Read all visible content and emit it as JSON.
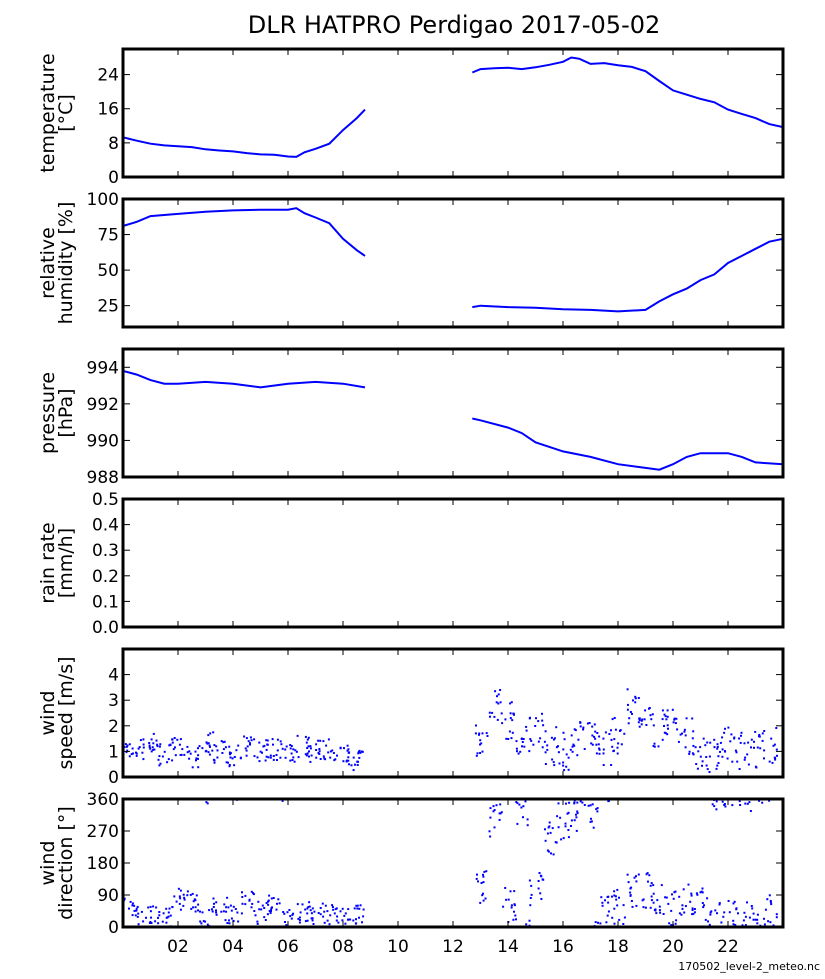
{
  "title": "DLR HATPRO  Perdigao  2017-05-02",
  "footer": "170502_level-2_meteo.nc",
  "line_color": "#0000ff",
  "chart_data": [
    {
      "type": "line",
      "ylabel": [
        "temperature",
        "[°C]"
      ],
      "ylim": [
        0,
        30
      ],
      "yticks": [
        0,
        8,
        16,
        24
      ],
      "ytick_labels": [
        "0",
        "8",
        "16",
        "24"
      ],
      "segments": [
        {
          "x": [
            0,
            0.5,
            1,
            1.5,
            2,
            2.5,
            3,
            3.5,
            4,
            4.5,
            5,
            5.5,
            6,
            6.3,
            6.6,
            7,
            7.5,
            8,
            8.5,
            8.8
          ],
          "y": [
            9.3,
            8.5,
            7.8,
            7.4,
            7.2,
            7.0,
            6.5,
            6.2,
            6.0,
            5.6,
            5.3,
            5.2,
            4.8,
            4.7,
            5.8,
            6.6,
            7.8,
            11,
            13.8,
            15.8
          ]
        },
        {
          "x": [
            12.7,
            13,
            13.5,
            14,
            14.5,
            15,
            15.5,
            16,
            16.3,
            16.6,
            17,
            17.5,
            18,
            18.5,
            19,
            19.5,
            20,
            20.5,
            21,
            21.5,
            22,
            22.5,
            23,
            23.5,
            24
          ],
          "y": [
            24.5,
            25.3,
            25.5,
            25.6,
            25.3,
            25.7,
            26.3,
            27,
            28,
            27.7,
            26.5,
            26.7,
            26.2,
            25.8,
            24.8,
            22.5,
            20.3,
            19.3,
            18.3,
            17.5,
            15.8,
            14.8,
            13.8,
            12.4,
            11.7
          ]
        }
      ]
    },
    {
      "type": "line",
      "ylabel": [
        "relative",
        "humidity [%]"
      ],
      "ylim": [
        10,
        100
      ],
      "yticks": [
        25,
        50,
        75,
        100
      ],
      "ytick_labels": [
        "25",
        "50",
        "75",
        "100"
      ],
      "segments": [
        {
          "x": [
            0,
            0.5,
            1,
            2,
            3,
            4,
            5,
            6,
            6.3,
            6.6,
            7,
            7.5,
            8,
            8.5,
            8.8
          ],
          "y": [
            81,
            84,
            88,
            89.5,
            91,
            92,
            92.5,
            92.5,
            93.5,
            90,
            87,
            83,
            72,
            64,
            60
          ]
        },
        {
          "x": [
            12.7,
            13,
            14,
            15,
            16,
            17,
            18,
            19,
            19.5,
            20,
            20.5,
            21,
            21.5,
            22,
            22.5,
            23,
            23.5,
            24
          ],
          "y": [
            24,
            25,
            24,
            23.5,
            22.5,
            22,
            21,
            22,
            28,
            33,
            37,
            43,
            47,
            55,
            60,
            65,
            70,
            72
          ]
        }
      ]
    },
    {
      "type": "line",
      "ylabel": [
        "pressure",
        "[hPa]"
      ],
      "ylim": [
        988,
        995
      ],
      "yticks": [
        988,
        990,
        992,
        994
      ],
      "ytick_labels": [
        "988",
        "990",
        "992",
        "994"
      ],
      "segments": [
        {
          "x": [
            0,
            0.5,
            1,
            1.5,
            2,
            3,
            4,
            5,
            6,
            7,
            8,
            8.8
          ],
          "y": [
            993.8,
            993.6,
            993.3,
            993.1,
            993.1,
            993.2,
            993.1,
            992.9,
            993.1,
            993.2,
            993.1,
            992.9
          ]
        },
        {
          "x": [
            12.7,
            13,
            14,
            14.5,
            15,
            16,
            17,
            18,
            19,
            19.5,
            20,
            20.5,
            21,
            22,
            22.5,
            23,
            24
          ],
          "y": [
            991.2,
            991.1,
            990.7,
            990.4,
            989.9,
            989.4,
            989.1,
            988.7,
            988.5,
            988.4,
            988.7,
            989.1,
            989.3,
            989.3,
            989.1,
            988.8,
            988.7
          ]
        }
      ]
    },
    {
      "type": "line",
      "ylabel": [
        "rain rate",
        "[mm/h]"
      ],
      "ylim": [
        0,
        0.5
      ],
      "yticks": [
        0,
        0.1,
        0.2,
        0.3,
        0.4,
        0.5
      ],
      "ytick_labels": [
        "0.0",
        "0.1",
        "0.2",
        "0.3",
        "0.4",
        "0.5"
      ],
      "segments": []
    },
    {
      "type": "scatter",
      "ylabel": [
        "wind",
        "speed [m/s]"
      ],
      "ylim": [
        0,
        5
      ],
      "yticks": [
        0,
        1,
        2,
        3,
        4
      ],
      "ytick_labels": [
        "0",
        "1",
        "2",
        "3",
        "4"
      ],
      "x0": 0,
      "dx": 0.5,
      "values": [
        1.0,
        1.1,
        1.3,
        0.9,
        1.1,
        0.8,
        1.3,
        1.0,
        0.8,
        1.2,
        1.0,
        1.1,
        1.0,
        1.2,
        1.0,
        1.1,
        0.8,
        0.7,
        null,
        null,
        null,
        null,
        null,
        null,
        null,
        null,
        1.5,
        2.8,
        2.2,
        1.3,
        1.8,
        1.2,
        1.0,
        1.6,
        1.4,
        1.2,
        1.6,
        2.8,
        2.2,
        1.9,
        2.1,
        1.6,
        1.0,
        0.8,
        1.2,
        1.0,
        1.1,
        1.2
      ]
    },
    {
      "type": "scatter",
      "ylabel": [
        "wind",
        "direction [°]"
      ],
      "ylim": [
        0,
        360
      ],
      "yticks": [
        0,
        90,
        180,
        270,
        360
      ],
      "ytick_labels": [
        "0",
        "90",
        "180",
        "270",
        "360"
      ],
      "x0": 0,
      "dx": 0.5,
      "values": [
        60,
        40,
        30,
        20,
        80,
        70,
        20,
        50,
        30,
        70,
        40,
        70,
        20,
        40,
        40,
        30,
        30,
        30,
        null,
        null,
        null,
        null,
        null,
        null,
        null,
        null,
        110,
        300,
        60,
        340,
        100,
        250,
        300,
        320,
        330,
        40,
        60,
        105,
        100,
        85,
        50,
        80,
        60,
        20,
        20,
        25,
        20,
        40
      ]
    }
  ],
  "xaxis": {
    "xlim": [
      0,
      24
    ],
    "ticks": [
      2,
      4,
      6,
      8,
      10,
      12,
      14,
      16,
      18,
      20,
      22
    ],
    "tick_labels": [
      "02",
      "04",
      "06",
      "08",
      "10",
      "12",
      "14",
      "16",
      "18",
      "20",
      "22"
    ]
  }
}
